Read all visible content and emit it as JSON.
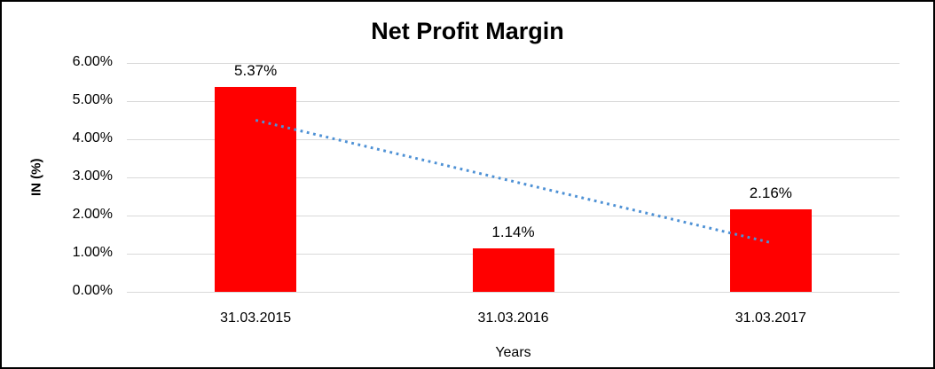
{
  "window": {
    "background_color": "#FFFFFF",
    "border_color": "#000000"
  },
  "chart_data": {
    "type": "bar",
    "title": "Net Profit Margin",
    "xlabel": "Years",
    "ylabel": "IN (%)",
    "categories": [
      "31.03.2015",
      "31.03.2016",
      "31.03.2017"
    ],
    "values": [
      5.37,
      1.14,
      2.16
    ],
    "data_labels": [
      "5.37%",
      "1.14%",
      "2.16%"
    ],
    "ylim": [
      0,
      6
    ],
    "ytick_step": 1,
    "ytick_labels": [
      "0.00%",
      "1.00%",
      "2.00%",
      "3.00%",
      "4.00%",
      "5.00%",
      "6.00%"
    ],
    "grid": true,
    "legend": "none",
    "bar_color": "#FF0000",
    "gridline_color": "#D9D9D9",
    "text_color": "#000000",
    "trendline": {
      "style": "dotted",
      "color": "#4E91D5",
      "start_value": 4.5,
      "end_value": 1.29
    }
  }
}
